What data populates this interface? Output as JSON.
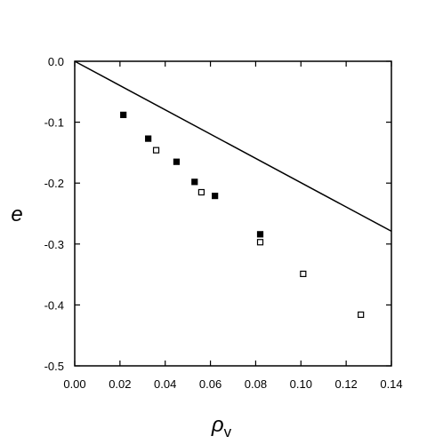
{
  "chart_data": {
    "type": "scatter",
    "xlabel": "ρ",
    "xlabel_subscript": "v",
    "ylabel": "e",
    "xlim": [
      0.0,
      0.14
    ],
    "ylim": [
      -0.5,
      0.0
    ],
    "x_ticks": [
      "0.00",
      "0.02",
      "0.04",
      "0.06",
      "0.08",
      "0.10",
      "0.12",
      "0.14"
    ],
    "y_ticks": [
      "0.0",
      "-0.1",
      "-0.2",
      "-0.3",
      "-0.4",
      "-0.5"
    ],
    "grid": false,
    "legend": "none",
    "series": [
      {
        "marker": "filled-square",
        "points": [
          {
            "x": 0.0215,
            "y": -0.088
          },
          {
            "x": 0.0325,
            "y": -0.127
          },
          {
            "x": 0.045,
            "y": -0.165
          },
          {
            "x": 0.053,
            "y": -0.198
          },
          {
            "x": 0.062,
            "y": -0.221
          },
          {
            "x": 0.082,
            "y": -0.284
          }
        ]
      },
      {
        "marker": "open-square",
        "points": [
          {
            "x": 0.036,
            "y": -0.146
          },
          {
            "x": 0.056,
            "y": -0.215
          },
          {
            "x": 0.082,
            "y": -0.297
          },
          {
            "x": 0.101,
            "y": -0.349
          },
          {
            "x": 0.1265,
            "y": -0.416
          }
        ]
      },
      {
        "marker": "line",
        "points": [
          {
            "x": 0.0,
            "y": 0.0
          },
          {
            "x": 0.14,
            "y": -0.279
          }
        ]
      }
    ]
  }
}
